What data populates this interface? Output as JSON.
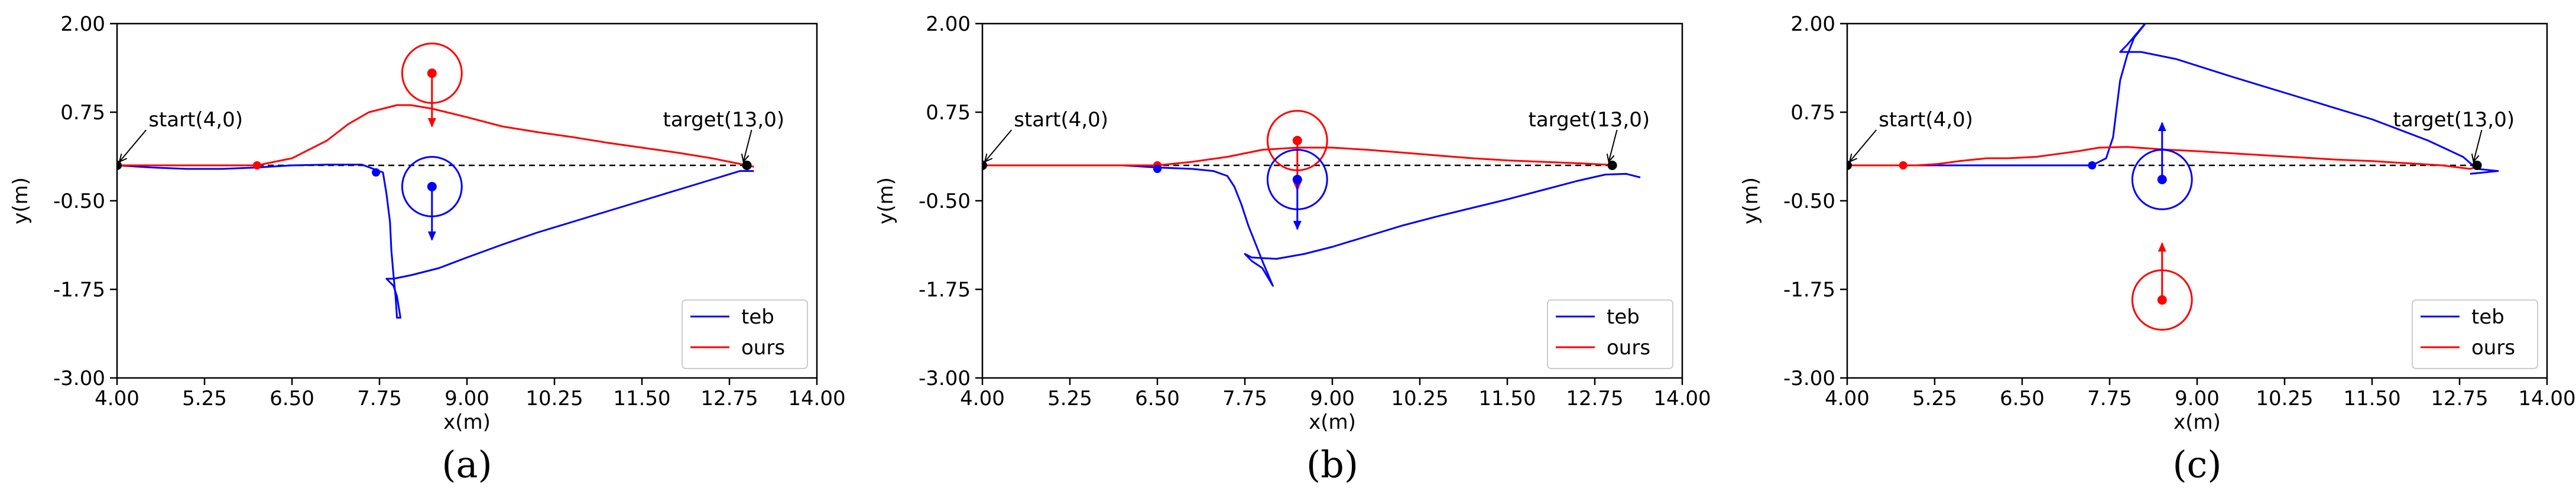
{
  "chart_data": [
    {
      "id": "a",
      "type": "line",
      "caption": "(a)",
      "xlabel": "x(m)",
      "ylabel": "y(m)",
      "xlim": [
        4.0,
        14.0
      ],
      "ylim": [
        -3.0,
        2.0
      ],
      "xticks": [
        "4.00",
        "5.25",
        "6.50",
        "7.75",
        "9.00",
        "10.25",
        "11.50",
        "12.75",
        "14.00"
      ],
      "yticks": [
        "-3.00",
        "-1.75",
        "-0.50",
        "0.75",
        "2.00"
      ],
      "legend": {
        "placement": "lower-right",
        "entries": [
          {
            "label": "teb",
            "color": "#0000ff"
          },
          {
            "label": "ours",
            "color": "#ff0000"
          }
        ]
      },
      "reference_line": {
        "from": [
          4.0,
          0.0
        ],
        "to": [
          13.0,
          0.0
        ]
      },
      "annotations": [
        {
          "text": "start(4,0)",
          "point": [
            4.0,
            0.0
          ],
          "text_at": [
            4.45,
            0.55
          ]
        },
        {
          "text": "target(13,0)",
          "point": [
            13.0,
            0.0
          ],
          "text_at": [
            11.8,
            0.55
          ]
        }
      ],
      "endpoints": [
        {
          "point": [
            4.0,
            0.0
          ]
        },
        {
          "point": [
            13.0,
            0.0
          ]
        }
      ],
      "series": [
        {
          "name": "teb",
          "color": "#0000ff",
          "x": [
            4.0,
            4.5,
            5.0,
            5.5,
            6.0,
            6.5,
            7.0,
            7.5,
            7.8,
            7.85,
            7.9,
            7.92,
            7.95,
            7.98,
            8.0,
            8.05,
            8.0,
            7.95,
            7.85,
            7.95,
            8.2,
            8.6,
            9.0,
            9.5,
            10.0,
            10.5,
            11.0,
            11.5,
            12.0,
            12.5,
            12.9,
            13.1
          ],
          "y": [
            0.0,
            -0.03,
            -0.05,
            -0.05,
            -0.03,
            0.0,
            0.01,
            0.01,
            -0.1,
            -0.4,
            -0.8,
            -1.2,
            -1.55,
            -1.85,
            -2.15,
            -2.15,
            -1.85,
            -1.7,
            -1.6,
            -1.6,
            -1.55,
            -1.45,
            -1.3,
            -1.12,
            -0.95,
            -0.8,
            -0.65,
            -0.5,
            -0.35,
            -0.2,
            -0.08,
            -0.08
          ]
        },
        {
          "name": "ours",
          "color": "#ff0000",
          "x": [
            4.0,
            5.0,
            5.5,
            6.0,
            6.5,
            7.0,
            7.3,
            7.6,
            7.8,
            8.0,
            8.2,
            8.5,
            9.0,
            9.5,
            10.0,
            10.5,
            11.0,
            11.5,
            12.0,
            12.5,
            12.9,
            13.1
          ],
          "y": [
            0.0,
            0.0,
            0.0,
            0.0,
            0.1,
            0.35,
            0.58,
            0.75,
            0.8,
            0.85,
            0.85,
            0.8,
            0.68,
            0.55,
            0.47,
            0.4,
            0.32,
            0.25,
            0.18,
            0.1,
            0.02,
            -0.02
          ]
        }
      ],
      "markers": [
        {
          "color": "#ff0000",
          "point": [
            6.0,
            0.0
          ]
        },
        {
          "color": "#0000ff",
          "point": [
            7.7,
            -0.1
          ]
        }
      ],
      "obstacles": [
        {
          "color": "#ff0000",
          "center": [
            8.5,
            1.3
          ],
          "radius": 0.42,
          "arrow_to": [
            8.5,
            0.55
          ]
        },
        {
          "color": "#0000ff",
          "center": [
            8.5,
            -0.3
          ],
          "radius": 0.42,
          "arrow_to": [
            8.5,
            -1.05
          ]
        }
      ]
    },
    {
      "id": "b",
      "type": "line",
      "caption": "(b)",
      "xlabel": "x(m)",
      "ylabel": "y(m)",
      "xlim": [
        4.0,
        14.0
      ],
      "ylim": [
        -3.0,
        2.0
      ],
      "xticks": [
        "4.00",
        "5.25",
        "6.50",
        "7.75",
        "9.00",
        "10.25",
        "11.50",
        "12.75",
        "14.00"
      ],
      "yticks": [
        "-3.00",
        "-1.75",
        "-0.50",
        "0.75",
        "2.00"
      ],
      "legend": {
        "placement": "lower-right",
        "entries": [
          {
            "label": "teb",
            "color": "#0000ff"
          },
          {
            "label": "ours",
            "color": "#ff0000"
          }
        ]
      },
      "reference_line": {
        "from": [
          4.0,
          0.0
        ],
        "to": [
          13.0,
          0.0
        ]
      },
      "annotations": [
        {
          "text": "start(4,0)",
          "point": [
            4.0,
            0.0
          ],
          "text_at": [
            4.45,
            0.55
          ]
        },
        {
          "text": "target(13,0)",
          "point": [
            13.0,
            0.0
          ],
          "text_at": [
            11.8,
            0.55
          ]
        }
      ],
      "endpoints": [
        {
          "point": [
            4.0,
            0.0
          ]
        },
        {
          "point": [
            13.0,
            0.0
          ]
        }
      ],
      "series": [
        {
          "name": "teb",
          "color": "#0000ff",
          "x": [
            4.0,
            4.5,
            5.0,
            5.5,
            6.0,
            6.5,
            7.0,
            7.3,
            7.5,
            7.6,
            7.7,
            7.8,
            7.9,
            8.0,
            8.15,
            8.0,
            7.85,
            7.75,
            7.85,
            8.2,
            8.6,
            9.0,
            9.5,
            10.0,
            10.5,
            11.0,
            11.5,
            12.0,
            12.5,
            12.9,
            13.2,
            13.4
          ],
          "y": [
            0.0,
            0.0,
            0.0,
            0.0,
            0.0,
            -0.03,
            -0.05,
            -0.08,
            -0.15,
            -0.3,
            -0.55,
            -0.85,
            -1.1,
            -1.35,
            -1.7,
            -1.45,
            -1.35,
            -1.25,
            -1.3,
            -1.32,
            -1.25,
            -1.15,
            -1.0,
            -0.85,
            -0.72,
            -0.6,
            -0.48,
            -0.35,
            -0.22,
            -0.13,
            -0.12,
            -0.17
          ]
        },
        {
          "name": "ours",
          "color": "#ff0000",
          "x": [
            4.0,
            5.0,
            6.0,
            6.5,
            7.0,
            7.5,
            8.0,
            8.5,
            9.0,
            9.5,
            10.0,
            10.5,
            11.0,
            11.5,
            12.0,
            12.5,
            12.9,
            13.0
          ],
          "y": [
            0.0,
            0.0,
            0.0,
            0.0,
            0.05,
            0.12,
            0.22,
            0.25,
            0.25,
            0.22,
            0.18,
            0.14,
            0.1,
            0.07,
            0.05,
            0.03,
            0.01,
            0.0
          ]
        }
      ],
      "markers": [
        {
          "color": "#ff0000",
          "point": [
            6.5,
            0.0
          ]
        },
        {
          "color": "#0000ff",
          "point": [
            6.5,
            -0.05
          ]
        }
      ],
      "obstacles": [
        {
          "color": "#ff0000",
          "center": [
            8.5,
            0.35
          ],
          "radius": 0.42,
          "arrow_to": [
            8.5,
            -0.35
          ]
        },
        {
          "color": "#0000ff",
          "center": [
            8.5,
            -0.2
          ],
          "radius": 0.42,
          "arrow_to": [
            8.5,
            -0.9
          ]
        }
      ]
    },
    {
      "id": "c",
      "type": "line",
      "caption": "(c)",
      "xlabel": "x(m)",
      "ylabel": "y(m)",
      "xlim": [
        4.0,
        14.0
      ],
      "ylim": [
        -3.0,
        2.0
      ],
      "xticks": [
        "4.00",
        "5.25",
        "6.50",
        "7.75",
        "9.00",
        "10.25",
        "11.50",
        "12.75",
        "14.00"
      ],
      "yticks": [
        "-3.00",
        "-1.75",
        "-0.50",
        "0.75",
        "2.00"
      ],
      "legend": {
        "placement": "lower-right",
        "entries": [
          {
            "label": "teb",
            "color": "#0000ff"
          },
          {
            "label": "ours",
            "color": "#ff0000"
          }
        ]
      },
      "reference_line": {
        "from": [
          4.0,
          0.0
        ],
        "to": [
          13.0,
          0.0
        ]
      },
      "annotations": [
        {
          "text": "start(4,0)",
          "point": [
            4.0,
            0.0
          ],
          "text_at": [
            4.45,
            0.55
          ]
        },
        {
          "text": "target(13,0)",
          "point": [
            13.0,
            0.0
          ],
          "text_at": [
            11.8,
            0.55
          ]
        }
      ],
      "endpoints": [
        {
          "point": [
            4.0,
            0.0
          ]
        },
        {
          "point": [
            13.0,
            0.0
          ]
        }
      ],
      "series": [
        {
          "name": "teb",
          "color": "#0000ff",
          "x": [
            4.0,
            5.0,
            6.0,
            7.0,
            7.5,
            7.7,
            7.8,
            7.85,
            7.9,
            8.0,
            8.1,
            8.3,
            8.0,
            7.9,
            8.2,
            8.7,
            9.5,
            10.5,
            11.5,
            12.3,
            12.8,
            13.0,
            13.3,
            12.9
          ],
          "y": [
            0.0,
            0.0,
            0.0,
            0.0,
            0.0,
            0.1,
            0.4,
            0.8,
            1.2,
            1.55,
            1.8,
            2.05,
            1.7,
            1.6,
            1.6,
            1.5,
            1.25,
            0.95,
            0.65,
            0.35,
            0.12,
            -0.05,
            -0.08,
            -0.12
          ]
        },
        {
          "name": "ours",
          "color": "#ff0000",
          "x": [
            4.0,
            4.8,
            5.0,
            5.3,
            5.6,
            6.0,
            6.3,
            6.7,
            7.0,
            7.3,
            7.6,
            8.0,
            8.3,
            8.6,
            9.0,
            9.5,
            10.0,
            10.5,
            11.0,
            11.5,
            12.0,
            12.5,
            12.9,
            13.0
          ],
          "y": [
            0.0,
            0.0,
            0.0,
            0.02,
            0.06,
            0.1,
            0.1,
            0.12,
            0.16,
            0.2,
            0.25,
            0.26,
            0.24,
            0.22,
            0.2,
            0.17,
            0.14,
            0.11,
            0.08,
            0.06,
            0.03,
            0.0,
            -0.05,
            -0.02
          ]
        }
      ],
      "markers": [
        {
          "color": "#ff0000",
          "point": [
            4.8,
            0.0
          ]
        },
        {
          "color": "#0000ff",
          "point": [
            7.5,
            0.0
          ]
        }
      ],
      "obstacles": [
        {
          "color": "#0000ff",
          "center": [
            8.5,
            -0.2
          ],
          "radius": 0.42,
          "arrow_to": [
            8.5,
            0.6
          ]
        },
        {
          "color": "#ff0000",
          "center": [
            8.5,
            -1.9
          ],
          "radius": 0.42,
          "arrow_to": [
            8.5,
            -1.1
          ]
        }
      ]
    }
  ]
}
